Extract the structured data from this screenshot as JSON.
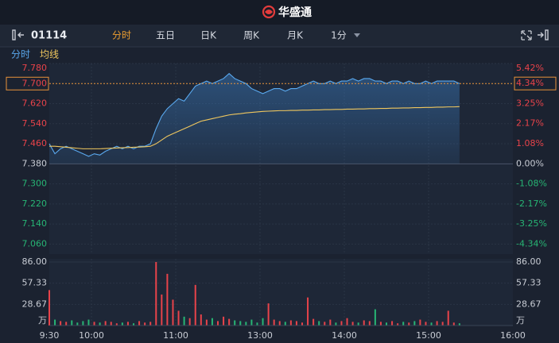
{
  "page": {
    "brand": "华盛通",
    "symbol": "01114",
    "tabs": [
      "分时",
      "五日",
      "日K",
      "周K",
      "月K",
      "1分"
    ],
    "active_tab": 0
  },
  "chart_data": [
    {
      "type": "line",
      "x": [
        0,
        4,
        8,
        12,
        16,
        20,
        24,
        28,
        32,
        36,
        40,
        44,
        48,
        52,
        56,
        60,
        64,
        68,
        72,
        76,
        80,
        84,
        88,
        92,
        96,
        100,
        104,
        108,
        112,
        116,
        120,
        124,
        128,
        132,
        136,
        140,
        144,
        148,
        152,
        156,
        160,
        164,
        168,
        172,
        176,
        180,
        184,
        188,
        192,
        196,
        200,
        204,
        208,
        212,
        216,
        220,
        224,
        228,
        232,
        236,
        240,
        244,
        248,
        252,
        256,
        260,
        264,
        268,
        272,
        276,
        280,
        284,
        288,
        292
      ],
      "xlim": [
        0,
        330
      ],
      "ylim": [
        7.02,
        7.78
      ],
      "yticks": [
        {
          "value": 7.78,
          "label": "7.780"
        },
        {
          "value": 7.7,
          "label": "7.700"
        },
        {
          "value": 7.62,
          "label": "7.620"
        },
        {
          "value": 7.54,
          "label": "7.540"
        },
        {
          "value": 7.46,
          "label": "7.460"
        },
        {
          "value": 7.38,
          "label": "7.380"
        },
        {
          "value": 7.3,
          "label": "7.300"
        },
        {
          "value": 7.22,
          "label": "7.220"
        },
        {
          "value": 7.14,
          "label": "7.140"
        },
        {
          "value": 7.06,
          "label": "7.060"
        }
      ],
      "y2lim": [
        -4.88,
        5.42
      ],
      "y2ticks": [
        {
          "value": 5.42,
          "label": "5.42%"
        },
        {
          "value": 4.34,
          "label": "4.34%"
        },
        {
          "value": 3.25,
          "label": "3.25%"
        },
        {
          "value": 2.17,
          "label": "2.17%"
        },
        {
          "value": 1.08,
          "label": "1.08%"
        },
        {
          "value": 0,
          "label": "0.00%"
        },
        {
          "value": -1.08,
          "label": "-1.08%"
        },
        {
          "value": -2.17,
          "label": "-2.17%"
        },
        {
          "value": -3.25,
          "label": "-3.25%"
        },
        {
          "value": -4.34,
          "label": "-4.34%"
        }
      ],
      "grid": true,
      "up_color": "#e8434a",
      "down_color": "#27b574",
      "series": [
        {
          "name": "分时",
          "color": "#5aa9ef",
          "values": [
            7.46,
            7.42,
            7.44,
            7.45,
            7.44,
            7.43,
            7.42,
            7.41,
            7.42,
            7.415,
            7.43,
            7.44,
            7.45,
            7.44,
            7.45,
            7.44,
            7.45,
            7.45,
            7.46,
            7.52,
            7.57,
            7.6,
            7.62,
            7.64,
            7.63,
            7.66,
            7.69,
            7.7,
            7.71,
            7.7,
            7.71,
            7.72,
            7.74,
            7.72,
            7.71,
            7.7,
            7.68,
            7.67,
            7.66,
            7.67,
            7.68,
            7.68,
            7.67,
            7.68,
            7.68,
            7.69,
            7.7,
            7.71,
            7.7,
            7.7,
            7.71,
            7.7,
            7.71,
            7.71,
            7.72,
            7.71,
            7.72,
            7.72,
            7.71,
            7.71,
            7.7,
            7.71,
            7.71,
            7.7,
            7.71,
            7.7,
            7.7,
            7.71,
            7.7,
            7.71,
            7.71,
            7.71,
            7.71,
            7.7
          ]
        },
        {
          "name": "均线",
          "color": "#f0c75e",
          "values": [
            7.45,
            7.45,
            7.448,
            7.446,
            7.444,
            7.442,
            7.44,
            7.44,
            7.44,
            7.44,
            7.441,
            7.442,
            7.443,
            7.444,
            7.445,
            7.446,
            7.447,
            7.448,
            7.45,
            7.46,
            7.475,
            7.49,
            7.5,
            7.51,
            7.52,
            7.53,
            7.54,
            7.55,
            7.555,
            7.56,
            7.565,
            7.57,
            7.575,
            7.578,
            7.58,
            7.583,
            7.585,
            7.587,
            7.589,
            7.59,
            7.591,
            7.592,
            7.592,
            7.593,
            7.593,
            7.594,
            7.594,
            7.595,
            7.595,
            7.596,
            7.596,
            7.597,
            7.597,
            7.598,
            7.598,
            7.599,
            7.599,
            7.6,
            7.6,
            7.601,
            7.601,
            7.602,
            7.602,
            7.603,
            7.603,
            7.604,
            7.604,
            7.605,
            7.605,
            7.606,
            7.606,
            7.607,
            7.607,
            7.608
          ]
        }
      ]
    },
    {
      "type": "bar",
      "x": [
        0,
        4,
        8,
        12,
        16,
        20,
        24,
        28,
        32,
        36,
        40,
        44,
        48,
        52,
        56,
        60,
        64,
        68,
        72,
        76,
        80,
        84,
        88,
        92,
        96,
        100,
        104,
        108,
        112,
        116,
        120,
        124,
        128,
        132,
        136,
        140,
        144,
        148,
        152,
        156,
        160,
        164,
        168,
        172,
        176,
        180,
        184,
        188,
        192,
        196,
        200,
        204,
        208,
        212,
        216,
        220,
        224,
        228,
        232,
        236,
        240,
        244,
        248,
        252,
        256,
        260,
        264,
        268,
        272,
        276,
        280,
        284,
        288,
        292
      ],
      "xlim": [
        0,
        330
      ],
      "xticks": [
        {
          "value": 0,
          "label": "9:30"
        },
        {
          "value": 30,
          "label": "10:00"
        },
        {
          "value": 90,
          "label": "11:00"
        },
        {
          "value": 150,
          "label": "13:00"
        },
        {
          "value": 210,
          "label": "14:00"
        },
        {
          "value": 270,
          "label": "15:00"
        },
        {
          "value": 330,
          "label": "16:00"
        }
      ],
      "ylim": [
        0,
        86
      ],
      "yticks": [
        {
          "value": 86,
          "label": "86.00"
        },
        57.33,
        28.67
      ],
      "unit": "万",
      "up_color": "#e8434a",
      "down_color": "#27b574",
      "values": [
        48,
        8,
        6,
        5,
        7,
        4,
        6,
        8,
        5,
        4,
        6,
        5,
        3,
        4,
        5,
        3,
        6,
        4,
        5,
        86,
        42,
        70,
        35,
        20,
        12,
        10,
        55,
        15,
        8,
        10,
        6,
        12,
        9,
        7,
        6,
        5,
        8,
        4,
        10,
        30,
        8,
        6,
        5,
        7,
        6,
        4,
        38,
        9,
        6,
        5,
        8,
        4,
        6,
        10,
        5,
        4,
        7,
        6,
        22,
        5,
        4,
        6,
        3,
        5,
        4,
        6,
        8,
        5,
        4,
        6,
        5,
        20,
        4,
        3
      ]
    }
  ]
}
